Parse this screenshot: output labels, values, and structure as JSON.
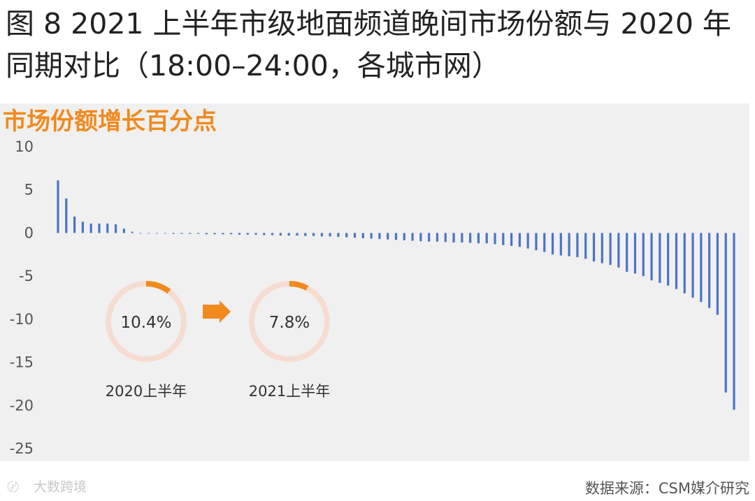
{
  "header": {
    "title": "图 8 2021 上半年市级地面频道晚间市场份额与 2020 年同期对比（18:00–24:00，各城市网）",
    "subtitle": "市场份额增长百分点"
  },
  "chart_data": {
    "type": "bar",
    "ylim": [
      -25,
      10
    ],
    "yticks": [
      10,
      5,
      0,
      -5,
      -10,
      -15,
      -20,
      -25
    ],
    "values": [
      6.1,
      4.0,
      1.9,
      1.3,
      1.1,
      1.1,
      1.1,
      1.0,
      0.5,
      0.15,
      -0.05,
      -0.05,
      -0.05,
      -0.05,
      -0.1,
      -0.1,
      -0.1,
      -0.1,
      -0.15,
      -0.15,
      -0.15,
      -0.15,
      -0.2,
      -0.2,
      -0.2,
      -0.25,
      -0.25,
      -0.3,
      -0.3,
      -0.3,
      -0.35,
      -0.35,
      -0.4,
      -0.4,
      -0.45,
      -0.5,
      -0.55,
      -0.6,
      -0.65,
      -0.7,
      -0.75,
      -0.8,
      -0.85,
      -0.9,
      -0.95,
      -1.0,
      -1.0,
      -1.05,
      -1.1,
      -1.1,
      -1.15,
      -1.2,
      -1.2,
      -1.3,
      -1.4,
      -1.5,
      -1.6,
      -1.8,
      -2.0,
      -2.2,
      -2.5,
      -2.6,
      -2.7,
      -2.8,
      -3.0,
      -3.3,
      -3.5,
      -3.7,
      -4.0,
      -4.5,
      -4.7,
      -5.0,
      -5.5,
      -5.8,
      -6.1,
      -6.5,
      -7.0,
      -7.5,
      -8.0,
      -8.7,
      -9.5,
      -18.5,
      -20.5
    ],
    "bar_color": "#4a74c4",
    "grid": false,
    "legend": "none"
  },
  "rings": [
    {
      "value_label": "10.4%",
      "fraction": 0.104,
      "caption": "2020上半年"
    },
    {
      "value_label": "7.8%",
      "fraction": 0.078,
      "caption": "2021上半年"
    }
  ],
  "ring_colors": {
    "accent": "#f08a1e",
    "track": "#f6dcd0"
  },
  "arrow_color": "#f08a1e",
  "footer": {
    "watermark": "大数跨境",
    "source": "数据来源：CSM媒介研究"
  }
}
